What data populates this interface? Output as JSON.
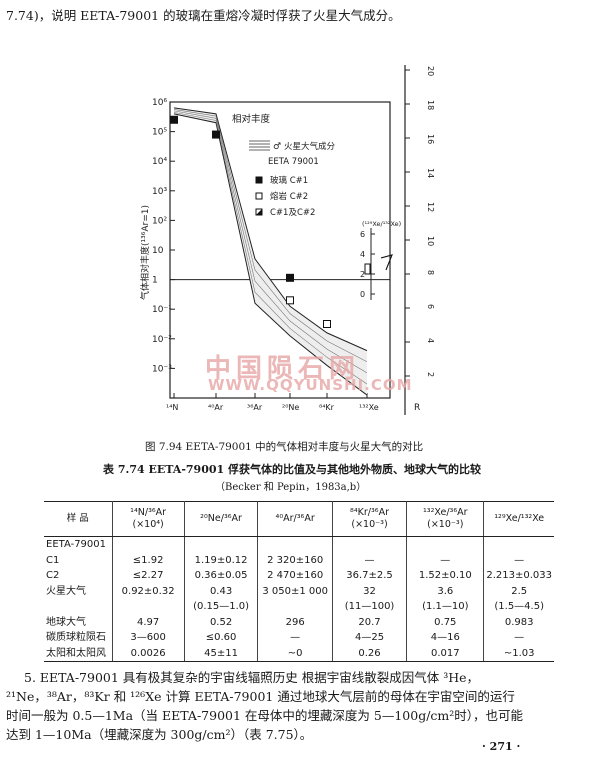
{
  "intro_line": "7.74)，说明 EETA-79001 的玻璃在重熔冷凝时俘获了火星大气成分。",
  "chart_data": {
    "type": "line",
    "ylabel": "气体相对丰度(¹³⁶Ar=1)",
    "y_tick_labels": [
      "10⁶",
      "10⁵",
      "10⁴",
      "10³",
      "10²",
      "10",
      "1",
      "10⁻¹",
      "10⁻²",
      "10⁻³"
    ],
    "x_tick_labels": [
      "N",
      "Ar",
      "Ar",
      "Ne",
      "Kr",
      "Xe"
    ],
    "x_tick_labels_full": [
      "¹⁴N",
      "⁴⁰Ar",
      "³⁶Ar",
      "²⁰Ne",
      "⁸⁴Kr",
      "¹³²Xe"
    ],
    "box_title": "相对丰度",
    "legend_band": "火星大气成分",
    "sample_name": "EETA 79001",
    "legend_items": [
      {
        "marker": "filled-square",
        "label": "玻璃  C#1"
      },
      {
        "marker": "open-square",
        "label": "熔岩  C#2"
      },
      {
        "marker": "half-square",
        "label": "C#1及C#2"
      }
    ],
    "inset_ylabel": "(¹²⁹Xe/¹³²Xe)",
    "inset_ticks": [
      "6",
      "4",
      "2",
      "0"
    ],
    "right_scale_ticks": [
      "20",
      "18",
      "16",
      "14",
      "12",
      "10",
      "8",
      "6",
      "4",
      "2"
    ],
    "right_scale_label": "R",
    "band_upper_log": [
      5.8,
      5.6,
      0.7,
      -0.9,
      -1.8,
      -2.4
    ],
    "band_lower_log": [
      5.6,
      5.3,
      -0.8,
      -1.9,
      -2.9,
      -3.9
    ],
    "points_log": [
      {
        "series": "C#1",
        "x": 3,
        "y": 0.06
      },
      {
        "series": "C#2",
        "x": 3,
        "y": -0.7
      },
      {
        "series": "C#2",
        "x": 4,
        "y": -1.5
      },
      {
        "series": "C#1及C#2",
        "x": 0,
        "y": 5.4
      },
      {
        "series": "C#1及C#2",
        "x": 1,
        "y": 4.9
      }
    ]
  },
  "watermark_cn": "中国陨石网",
  "watermark_url": "WWW.QQYUNSHI.COM",
  "figure_caption": "图 7.94   EETA-79001 中的气体相对丰度与火星大气的对比",
  "table_title": "表 7.74   EETA-79001 俘获气体的比值及与其他地外物质、地球大气的比较",
  "table_subtitle": "（Becker 和 Pepin，1983a,b）",
  "table": {
    "headers": [
      "样  品",
      "¹⁴N/³⁶Ar (×10⁴)",
      "²⁰Ne/³⁶Ar",
      "⁴⁰Ar/³⁶Ar",
      "⁸⁴Kr/³⁶Ar (×10⁻³)",
      "¹³²Xe/³⁶Ar (×10⁻³)",
      "¹²⁹Xe/¹³²Xe"
    ],
    "rows": [
      [
        "EETA-79001",
        "",
        "",
        "",
        "",
        "",
        ""
      ],
      [
        "C1",
        "≤1.92",
        "1.19±0.12",
        "2 320±160",
        "—",
        "—",
        "—"
      ],
      [
        "C2",
        "≤2.27",
        "0.36±0.05",
        "2 470±160",
        "36.7±2.5",
        "1.52±0.10",
        "2.213±0.033"
      ],
      [
        "火星大气",
        "0.92±0.32",
        "0.43",
        "3 050±1 000",
        "32",
        "3.6",
        "2.5"
      ],
      [
        "",
        "",
        "(0.15—1.0)",
        "",
        "(11—100)",
        "(1.1—10)",
        "(1.5—4.5)"
      ],
      [
        "地球大气",
        "4.97",
        "0.52",
        "296",
        "20.7",
        "0.75",
        "0.983"
      ],
      [
        "碳质球粒陨石",
        "3—600",
        "≤0.60",
        "—",
        "4—25",
        "4—16",
        "—"
      ],
      [
        "太阳和太阳风",
        "0.0026",
        "45±11",
        "~0",
        "0.26",
        "0.017",
        "~1.03"
      ]
    ]
  },
  "para_lines": [
    "5. EETA-79001 具有极其复杂的宇宙线辐照历史    根据宇宙线散裂成因气体 ³He，",
    "²¹Ne，³⁸Ar，⁸³Kr 和 ¹²⁶Xe 计算 EETA-79001 通过地球大气层前的母体在宇宙空间的运行",
    "时间一般为 0.5—1Ma（当 EETA-79001 在母体中的埋藏深度为 5—100g/cm²时），也可能",
    "达到 1—10Ma（埋藏深度为 300g/cm²）（表 7.75）。"
  ],
  "page_number": "· 271 ·"
}
